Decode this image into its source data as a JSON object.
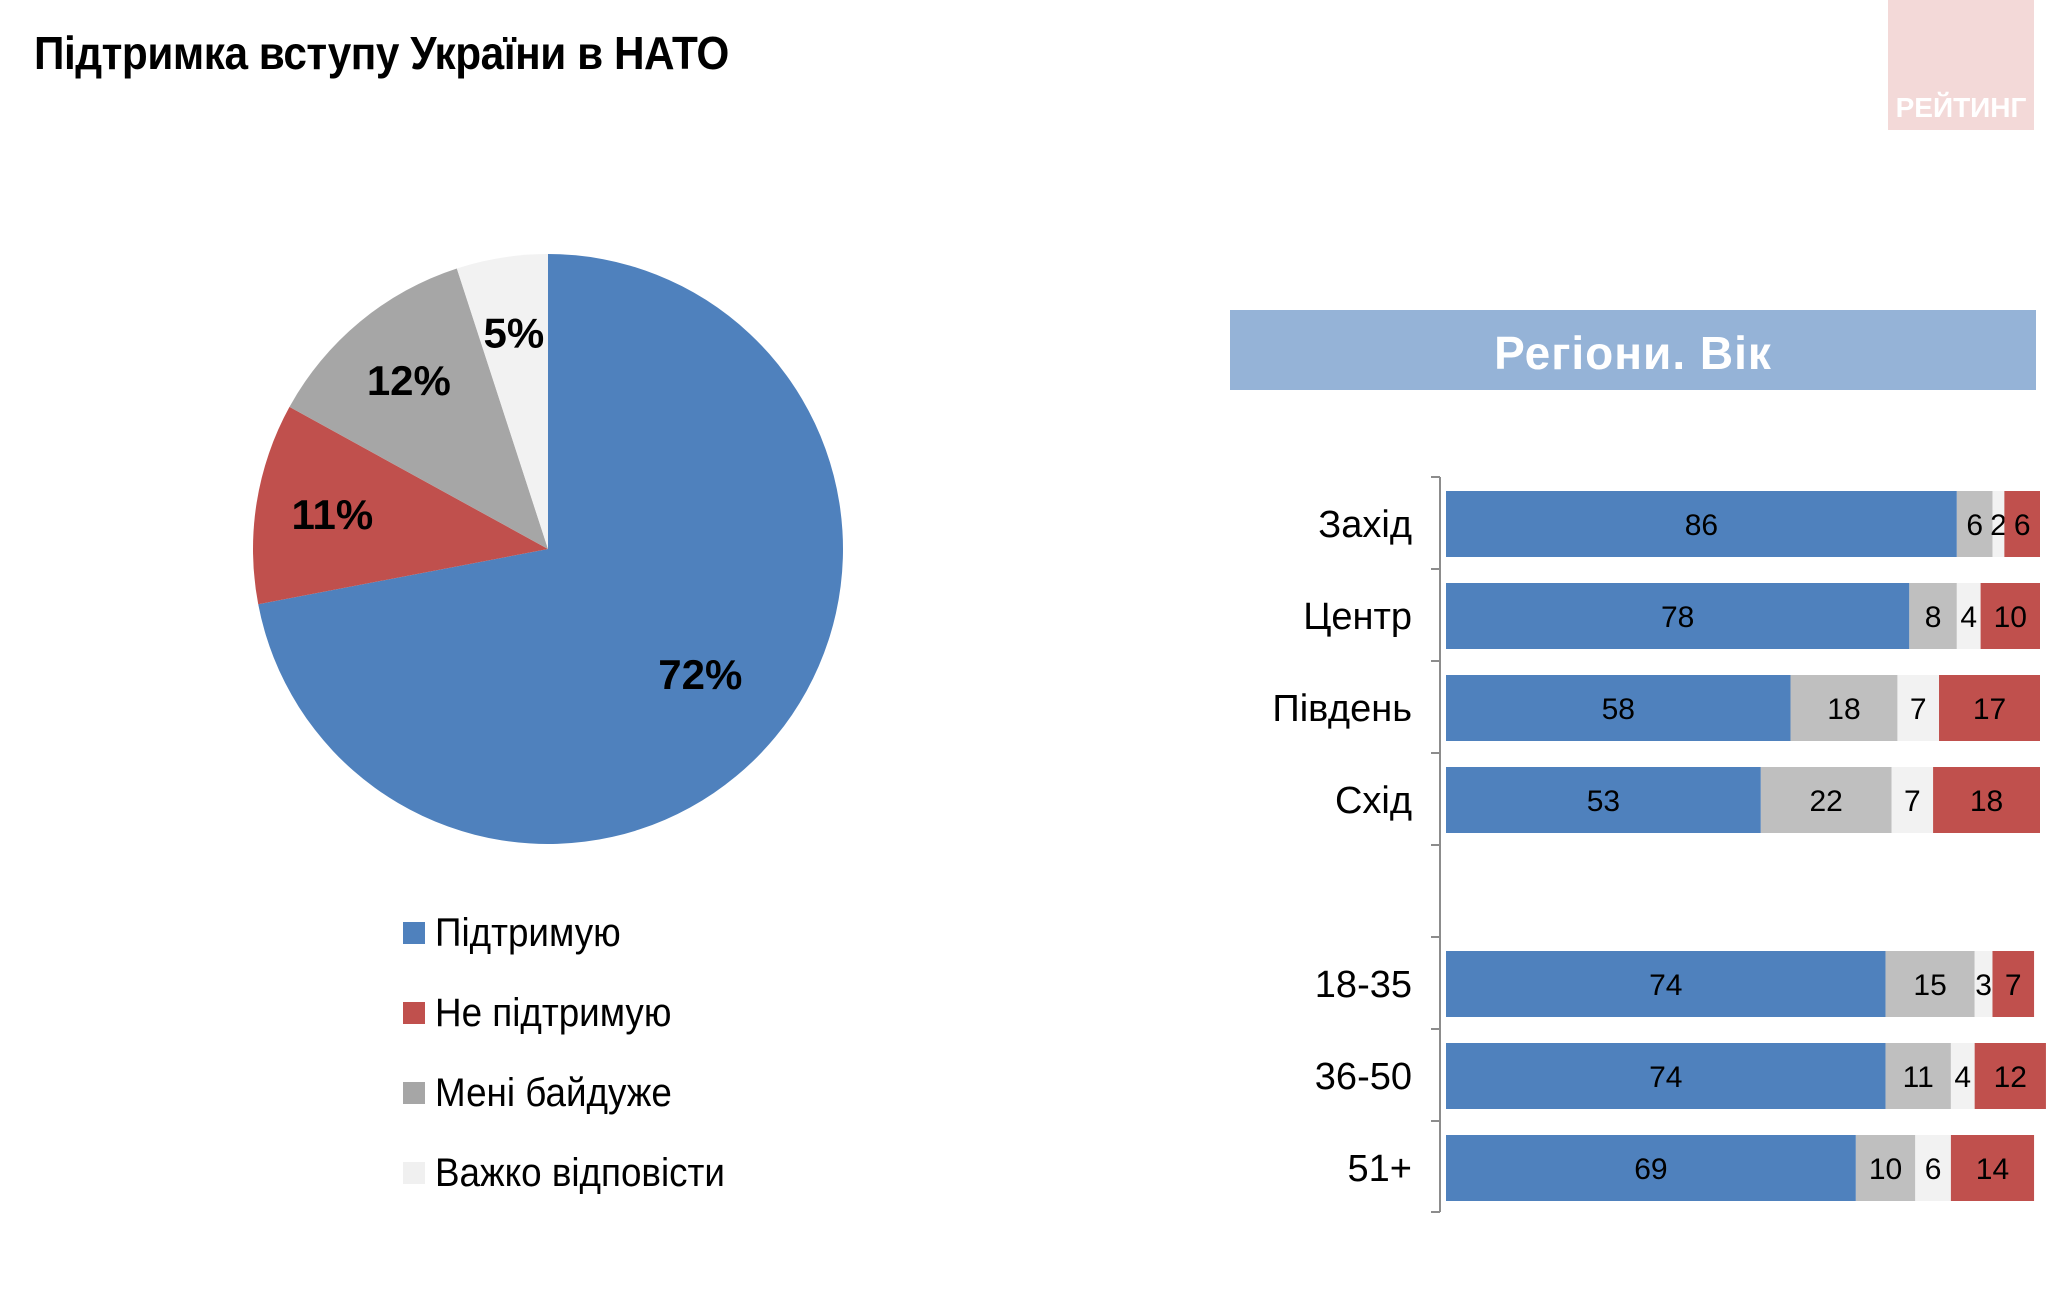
{
  "title": "Підтримка вступу України в НАТО",
  "brand": "РЕЙТИНГ",
  "section_header": "Регіони. Вік",
  "colors": {
    "support": "#4f81bd",
    "oppose": "#c0504d",
    "indifferent": "#a6a6a6",
    "hard": "#f2f2f2",
    "brand_bg": "#f3d9d8",
    "band_bg": "#95b3d7"
  },
  "legend": [
    {
      "label": "Підтримую",
      "color": "#4f81bd"
    },
    {
      "label": "Не підтримую",
      "color": "#c0504d"
    },
    {
      "label": "Мені байдуже",
      "color": "#a6a6a6"
    },
    {
      "label": "Важко відповісти",
      "color": "#f2f2f2"
    }
  ],
  "chart_data": [
    {
      "type": "pie",
      "slices": [
        {
          "category": "Підтримую",
          "value": 72,
          "label": "72%",
          "color": "#4f81bd"
        },
        {
          "category": "Не підтримую",
          "value": 11,
          "label": "11%",
          "color": "#c0504d"
        },
        {
          "category": "Мені байдуже",
          "value": 12,
          "label": "12%",
          "color": "#a6a6a6"
        },
        {
          "category": "Важко відповісти",
          "value": 5,
          "label": "5%",
          "color": "#f2f2f2"
        }
      ]
    },
    {
      "type": "bar",
      "orientation": "horizontal",
      "stacked": true,
      "categories": [
        "Захід",
        "Центр",
        "Південь",
        "Схід",
        "18-35",
        "36-50",
        "51+"
      ],
      "series": [
        {
          "name": "Підтримую",
          "color": "#4f81bd",
          "values": [
            86,
            78,
            58,
            53,
            74,
            74,
            69
          ]
        },
        {
          "name": "Мені байдуже",
          "color": "#bfbfbf",
          "values": [
            6,
            8,
            18,
            22,
            15,
            11,
            10
          ]
        },
        {
          "name": "Важко відповісти",
          "color": "#f2f2f2",
          "values": [
            2,
            4,
            7,
            7,
            3,
            4,
            6
          ]
        },
        {
          "name": "Не підтримую",
          "color": "#c0504d",
          "values": [
            6,
            10,
            17,
            18,
            7,
            12,
            14
          ]
        }
      ]
    }
  ]
}
